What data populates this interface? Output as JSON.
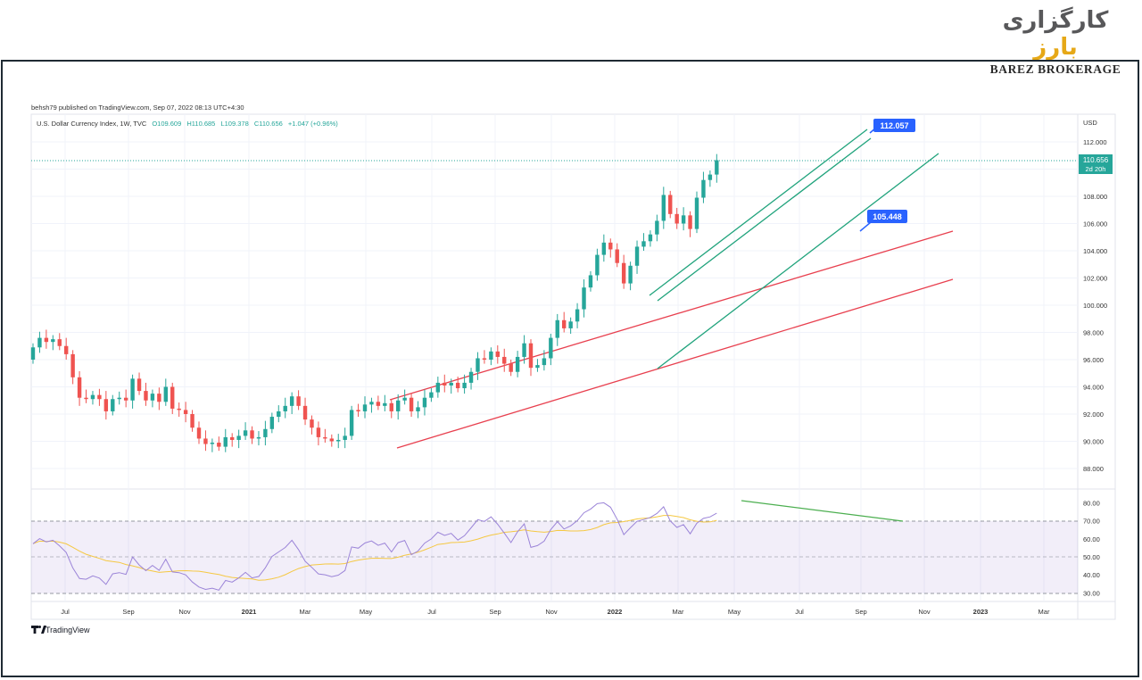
{
  "brand": {
    "name_gray": "کارگزاری",
    "name_orange": "بارز",
    "name_en": "BAREZ BROKERAGE"
  },
  "header": {
    "published": "behsh79 published on TradingView.com, Sep 07, 2022 08:13 UTC+4:30",
    "symbol": "U.S. Dollar Currency Index, 1W, TVC",
    "o": "O109.609",
    "h": "H110.685",
    "l": "L109.378",
    "c": "C110.656",
    "change": "+1.047 (+0.96%)"
  },
  "price_axis": {
    "currency": "USD",
    "last_price": "110.656",
    "countdown": "2d 20h"
  },
  "annotations": {
    "top": "112.057",
    "bottom": "105.448"
  },
  "footer": {
    "logo": "TradingView"
  },
  "colors": {
    "up": "#26a69a",
    "down": "#ef5350",
    "channel": "#20a37c",
    "red_line": "#e8404f",
    "rsi": "#9b84d8",
    "rsi_ma": "#f5c842",
    "divergence": "#4caf50",
    "label": "#2962ff"
  },
  "chart_data": {
    "type": "candlestick",
    "title": "U.S. Dollar Currency Index, 1W, TVC",
    "ylabel": "USD",
    "ylim": [
      86.6,
      113.6
    ],
    "yticks": [
      "112.000",
      "110.000",
      "108.000",
      "106.000",
      "104.000",
      "102.000",
      "100.000",
      "98.000",
      "96.000",
      "94.000",
      "92.000",
      "90.000",
      "88.000"
    ],
    "x_tick_labels": [
      "Jul",
      "Sep",
      "Nov",
      "2021",
      "Mar",
      "May",
      "Jul",
      "Sep",
      "Nov",
      "2022",
      "Mar",
      "May",
      "Jul",
      "Sep",
      "Nov",
      "2023",
      "Mar"
    ],
    "candles_close": [
      96.9,
      97.6,
      97.3,
      97.5,
      97,
      96.4,
      94.7,
      93.2,
      93.1,
      93.4,
      93.1,
      92.2,
      93.1,
      93.2,
      93,
      94.6,
      93.7,
      93,
      93.5,
      92.9,
      94,
      92.4,
      92.3,
      92,
      91,
      90.2,
      89.8,
      89.9,
      89.6,
      90.3,
      90.1,
      90.4,
      90.8,
      90.2,
      90.3,
      90.9,
      91.8,
      92.2,
      92.6,
      93.3,
      92.6,
      91.6,
      91,
      90.3,
      90.2,
      90,
      90.1,
      90.4,
      92.3,
      92.2,
      92.7,
      92.9,
      92.6,
      92.8,
      92.2,
      93,
      93.2,
      92.2,
      92.5,
      93.2,
      93.6,
      94.3,
      94.1,
      94.3,
      93.9,
      94.3,
      95.1,
      96.1,
      96.0,
      96.6,
      96.2,
      95.7,
      95.1,
      96.2,
      97.2,
      95.4,
      95.6,
      96.1,
      97.6,
      98.9,
      98.3,
      98.8,
      99.7,
      101.3,
      102.2,
      103.7,
      104.6,
      104.1,
      103.1,
      101.6,
      102.9,
      104.3,
      104.7,
      105.2,
      106.2,
      108.1,
      106.7,
      106.0,
      106.6,
      105.6,
      107.9,
      109.2,
      109.6,
      110.656
    ]
  },
  "rsi": {
    "yticks": [
      "80.00",
      "70.00",
      "60.00",
      "50.00",
      "40.00",
      "30.00"
    ],
    "overbought": 70,
    "middle": 50,
    "oversold": 30
  }
}
